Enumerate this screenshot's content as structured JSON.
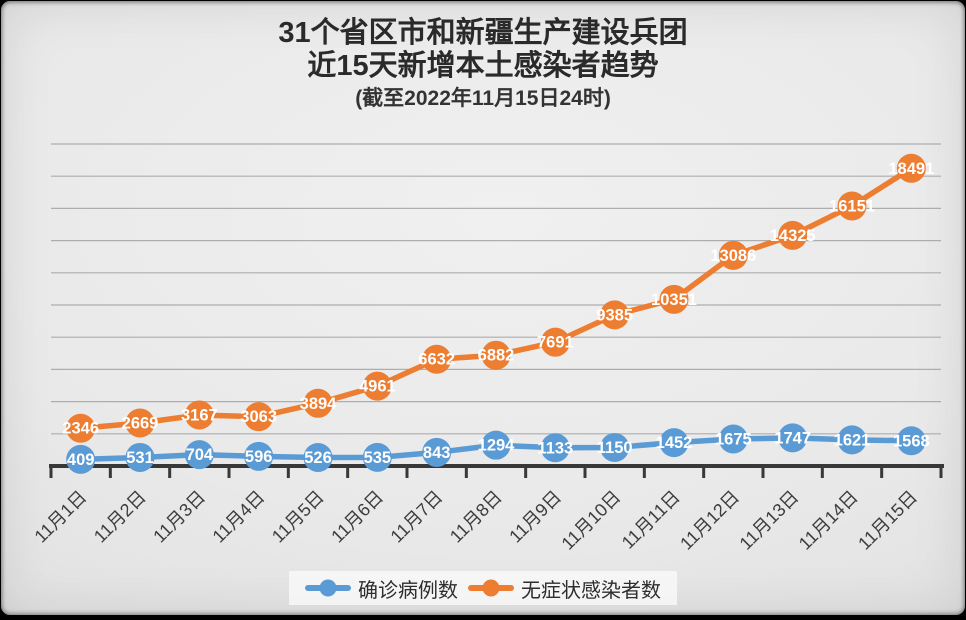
{
  "title": {
    "line1": "31个省区市和新疆生产建设兵团",
    "line2": "近15天新增本土感染者趋势",
    "line3": "(截至2022年11月15日24时)"
  },
  "chart_data": {
    "type": "line",
    "title": "31个省区市和新疆生产建设兵团近15天新增本土感染者趋势",
    "subtitle": "(截至2022年11月15日24时)",
    "categories": [
      "11月1日",
      "11月2日",
      "11月3日",
      "11月4日",
      "11月5日",
      "11月6日",
      "11月7日",
      "11月8日",
      "11月9日",
      "11月10日",
      "11月11日",
      "11月12日",
      "11月13日",
      "11月14日",
      "11月15日"
    ],
    "series": [
      {
        "name": "确诊病例数",
        "color": "#5b9bd5",
        "values": [
          409,
          531,
          704,
          596,
          526,
          535,
          843,
          1294,
          1133,
          1150,
          1452,
          1675,
          1747,
          1621,
          1568
        ]
      },
      {
        "name": "无症状感染者数",
        "color": "#ed7d31",
        "values": [
          2346,
          2669,
          3167,
          3063,
          3894,
          4961,
          6632,
          6882,
          7691,
          9385,
          10351,
          13086,
          14325,
          16151,
          18491
        ]
      }
    ],
    "xlabel": "",
    "ylabel": "",
    "ylim": [
      0,
      20000
    ],
    "grid_step": 2000,
    "grid": true,
    "legend_position": "bottom",
    "data_labels": true,
    "data_label_color": "#ffffff",
    "axis_color": "#383838",
    "gridline_color": "#a3a3a3",
    "x_tick_label_color": "#3d3d3d"
  }
}
